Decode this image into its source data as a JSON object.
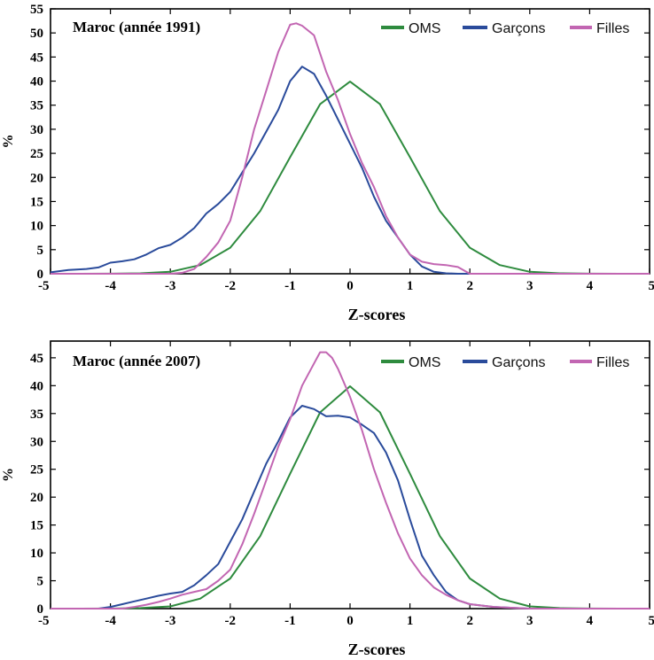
{
  "chart_data": [
    {
      "type": "line",
      "title": "Maroc (année 1991)",
      "xlabel": "Z-scores",
      "ylabel": "%",
      "xlim": [
        -5,
        5
      ],
      "ylim": [
        0,
        55
      ],
      "xticks": [
        "-5",
        "-4",
        "-3",
        "-2",
        "-1",
        "0",
        "1",
        "2",
        "3",
        "4",
        "5"
      ],
      "yticks": [
        "0",
        "5",
        "10",
        "15",
        "20",
        "25",
        "30",
        "35",
        "40",
        "45",
        "50",
        "55"
      ],
      "legend_position": "top-right",
      "series": [
        {
          "name": "OMS",
          "color": "#2e8b3e",
          "x": [
            -5,
            -4.5,
            -4,
            -3.5,
            -3,
            -2.5,
            -2,
            -1.5,
            -1,
            -0.5,
            0,
            0.5,
            1,
            1.5,
            2,
            2.5,
            3,
            3.5,
            4,
            4.5,
            5
          ],
          "y": [
            0,
            0,
            0.01,
            0.1,
            0.4,
            1.8,
            5.4,
            13,
            24.2,
            35.2,
            39.9,
            35.2,
            24.2,
            13,
            5.4,
            1.8,
            0.4,
            0.1,
            0.01,
            0,
            0
          ]
        },
        {
          "name": "Garçons",
          "color": "#2a4b9b",
          "x": [
            -5,
            -4.7,
            -4.4,
            -4.2,
            -4,
            -3.8,
            -3.6,
            -3.4,
            -3.2,
            -3,
            -2.8,
            -2.6,
            -2.4,
            -2.2,
            -2,
            -1.8,
            -1.6,
            -1.4,
            -1.2,
            -1,
            -0.8,
            -0.6,
            -0.4,
            -0.2,
            0,
            0.2,
            0.4,
            0.6,
            0.8,
            1,
            1.2,
            1.4,
            1.6,
            1.8,
            2,
            2.5,
            3,
            4,
            5
          ],
          "y": [
            0.3,
            0.8,
            1,
            1.3,
            2.3,
            2.6,
            3,
            4,
            5.3,
            6,
            7.5,
            9.5,
            12.5,
            14.5,
            17,
            21,
            25,
            29.5,
            34,
            40,
            43,
            41.5,
            37,
            32,
            27,
            22,
            16,
            11,
            7.5,
            4,
            1.5,
            0.4,
            0.1,
            0,
            0,
            0,
            0,
            0,
            0
          ]
        },
        {
          "name": "Filles",
          "color": "#c266b2",
          "x": [
            -5,
            -3,
            -2.8,
            -2.6,
            -2.4,
            -2.2,
            -2,
            -1.8,
            -1.6,
            -1.4,
            -1.2,
            -1,
            -0.9,
            -0.8,
            -0.6,
            -0.4,
            -0.2,
            0,
            0.2,
            0.4,
            0.6,
            0.8,
            1,
            1.2,
            1.4,
            1.6,
            1.8,
            2,
            2.5,
            5
          ],
          "y": [
            0,
            0,
            0.2,
            1,
            3.5,
            6.5,
            11,
            20,
            30,
            38,
            46,
            51.7,
            52,
            51.5,
            49.5,
            42,
            36,
            29,
            23,
            18,
            12,
            7.5,
            4,
            2.5,
            2,
            1.8,
            1.4,
            0,
            0,
            0
          ]
        }
      ]
    },
    {
      "type": "line",
      "title": "Maroc (année 2007)",
      "xlabel": "Z-scores",
      "ylabel": "%",
      "xlim": [
        -5,
        5
      ],
      "ylim": [
        0,
        48
      ],
      "xticks": [
        "-5",
        "-4",
        "-3",
        "-2",
        "-1",
        "0",
        "1",
        "2",
        "3",
        "4",
        "5"
      ],
      "yticks": [
        "0",
        "5",
        "10",
        "15",
        "20",
        "25",
        "30",
        "35",
        "40",
        "45"
      ],
      "legend_position": "top-right",
      "series": [
        {
          "name": "OMS",
          "color": "#2e8b3e",
          "x": [
            -5,
            -4.5,
            -4,
            -3.5,
            -3,
            -2.5,
            -2,
            -1.5,
            -1,
            -0.5,
            0,
            0.5,
            1,
            1.5,
            2,
            2.5,
            3,
            3.5,
            4,
            4.5,
            5
          ],
          "y": [
            0,
            0,
            0.01,
            0.1,
            0.4,
            1.8,
            5.4,
            13,
            24.2,
            35.2,
            39.9,
            35.2,
            24.2,
            13,
            5.4,
            1.8,
            0.4,
            0.1,
            0.01,
            0,
            0
          ]
        },
        {
          "name": "Garçons",
          "color": "#2a4b9b",
          "x": [
            -5,
            -4.2,
            -4,
            -3.8,
            -3.6,
            -3.4,
            -3.2,
            -3,
            -2.8,
            -2.6,
            -2.4,
            -2.2,
            -2,
            -1.8,
            -1.6,
            -1.4,
            -1.2,
            -1,
            -0.8,
            -0.6,
            -0.4,
            -0.2,
            0,
            0.2,
            0.4,
            0.6,
            0.8,
            1,
            1.2,
            1.4,
            1.6,
            1.8,
            2,
            2.4,
            3,
            5
          ],
          "y": [
            0,
            0,
            0.3,
            0.8,
            1.3,
            1.8,
            2.3,
            2.7,
            3,
            4.2,
            6,
            8,
            12,
            16,
            21,
            26,
            30,
            34.3,
            36.4,
            35.8,
            34.5,
            34.6,
            34.3,
            33,
            31.5,
            28,
            23,
            16,
            9.5,
            6,
            3,
            1.5,
            0.8,
            0.3,
            0,
            0
          ]
        },
        {
          "name": "Filles",
          "color": "#c266b2",
          "x": [
            -5,
            -3.8,
            -3.6,
            -3.4,
            -3.2,
            -3,
            -2.8,
            -2.6,
            -2.4,
            -2.2,
            -2,
            -1.8,
            -1.6,
            -1.4,
            -1.2,
            -1,
            -0.8,
            -0.6,
            -0.5,
            -0.4,
            -0.3,
            -0.2,
            0,
            0.2,
            0.4,
            0.6,
            0.8,
            1,
            1.2,
            1.4,
            1.6,
            1.8,
            2,
            2.4,
            3,
            5
          ],
          "y": [
            0,
            0,
            0.3,
            0.7,
            1.2,
            1.8,
            2.5,
            3,
            3.5,
            5,
            7,
            11.5,
            17,
            23,
            29,
            34,
            40,
            44,
            46,
            46,
            45,
            43,
            38,
            32,
            25,
            19,
            13.5,
            9,
            6,
            3.8,
            2.5,
            1.5,
            0.8,
            0.3,
            0,
            0
          ]
        }
      ]
    }
  ]
}
